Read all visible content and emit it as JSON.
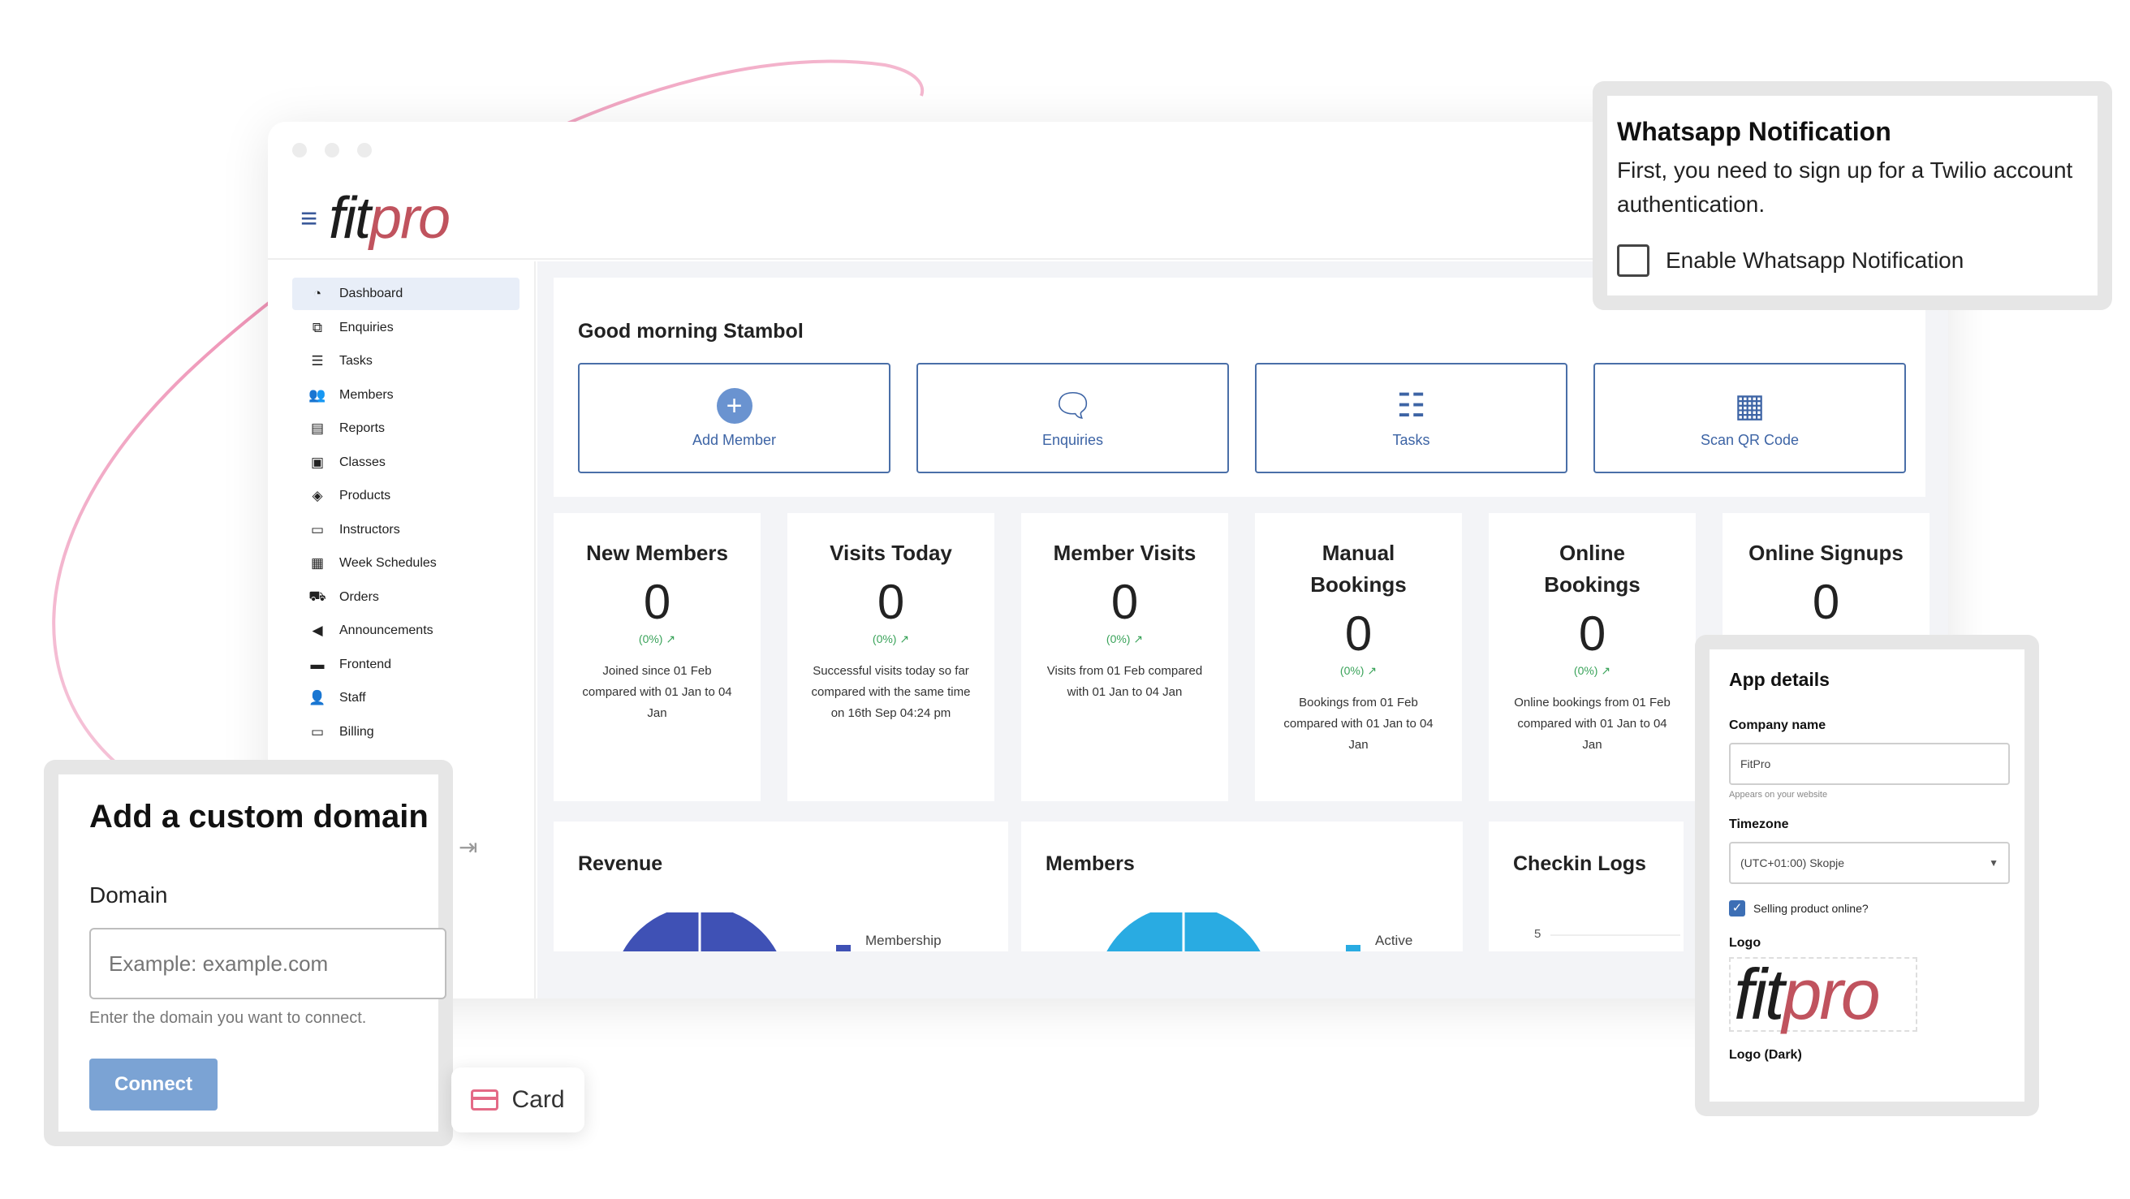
{
  "brand": {
    "logo_fit": "fit",
    "logo_pro": "pro",
    "accent": "#c0535e",
    "primary": "#3d64a5"
  },
  "sidebar": {
    "items": [
      {
        "label": "Dashboard",
        "icon": "dashboard-icon",
        "glyph": "◔"
      },
      {
        "label": "Enquiries",
        "icon": "enquiries-icon",
        "glyph": "⧉"
      },
      {
        "label": "Tasks",
        "icon": "tasks-icon",
        "glyph": "☰"
      },
      {
        "label": "Members",
        "icon": "members-icon",
        "glyph": "👥"
      },
      {
        "label": "Reports",
        "icon": "reports-icon",
        "glyph": "▤"
      },
      {
        "label": "Classes",
        "icon": "classes-icon",
        "glyph": "▣"
      },
      {
        "label": "Products",
        "icon": "products-icon",
        "glyph": "◈"
      },
      {
        "label": "Instructors",
        "icon": "instructors-icon",
        "glyph": "▭"
      },
      {
        "label": "Week Schedules",
        "icon": "calendar-icon",
        "glyph": "▦"
      },
      {
        "label": "Orders",
        "icon": "cart-icon",
        "glyph": "⛟"
      },
      {
        "label": "Announcements",
        "icon": "megaphone-icon",
        "glyph": "◀"
      },
      {
        "label": "Frontend",
        "icon": "frontend-icon",
        "glyph": "▬"
      },
      {
        "label": "Staff",
        "icon": "staff-icon",
        "glyph": "👤"
      },
      {
        "label": "Billing",
        "icon": "billing-icon",
        "glyph": "▭"
      }
    ]
  },
  "dashboard": {
    "greeting": "Good morning Stambol",
    "actions": [
      {
        "label": "Add Member",
        "icon": "add-circle-icon",
        "glyph": "+"
      },
      {
        "label": "Enquiries",
        "icon": "chat-question-icon",
        "glyph": "🗨"
      },
      {
        "label": "Tasks",
        "icon": "checklist-icon",
        "glyph": "☷"
      },
      {
        "label": "Scan QR Code",
        "icon": "qr-code-icon",
        "glyph": "▦"
      }
    ],
    "stats": [
      {
        "title": "New Members",
        "value": "0",
        "pct": "(0%) ↗",
        "desc": "Joined since 01 Feb compared with 01 Jan to 04 Jan"
      },
      {
        "title": "Visits Today",
        "value": "0",
        "pct": "(0%) ↗",
        "desc": "Successful visits today so far compared with the same time on 16th Sep 04:24 pm"
      },
      {
        "title": "Member Visits",
        "value": "0",
        "pct": "(0%) ↗",
        "desc": "Visits from 01 Feb compared with 01 Jan to 04 Jan"
      },
      {
        "title": "Manual Bookings",
        "value": "0",
        "pct": "(0%) ↗",
        "desc": "Bookings from 01 Feb compared with 01 Jan to 04 Jan"
      },
      {
        "title": "Online Bookings",
        "value": "0",
        "pct": "(0%) ↗",
        "desc": "Online bookings from 01 Feb compared with 01 Jan to 04 Jan"
      },
      {
        "title": "Online Signups",
        "value": "0",
        "pct": "",
        "desc": ""
      }
    ],
    "revenue": {
      "title": "Revenue",
      "legend": "Membership",
      "color": "#3f51b5"
    },
    "members": {
      "title": "Members",
      "legend": "Active",
      "color": "#29abe2"
    },
    "checkins": {
      "title": "Checkin Logs",
      "axis_tick": "5"
    }
  },
  "whatsapp_popup": {
    "title": "Whatsapp Notification",
    "text": "First, you need to sign up for a Twilio account authentication.",
    "checkbox_label": "Enable Whatsapp Notification"
  },
  "domain_popup": {
    "title": "Add a custom domain",
    "label": "Domain",
    "placeholder": "Example: example.com",
    "help": "Enter the domain you want to connect.",
    "button": "Connect"
  },
  "card_chip": {
    "label": "Card"
  },
  "app_details": {
    "title": "App details",
    "company_label": "Company name",
    "company_value": "FitPro",
    "company_help": "Appears on your website",
    "timezone_label": "Timezone",
    "timezone_value": "(UTC+01:00) Skopje",
    "selling_label": "Selling product online?",
    "logo_label": "Logo",
    "logo_fit": "fit",
    "logo_pro": "pro",
    "logo_dark_label": "Logo (Dark)"
  }
}
